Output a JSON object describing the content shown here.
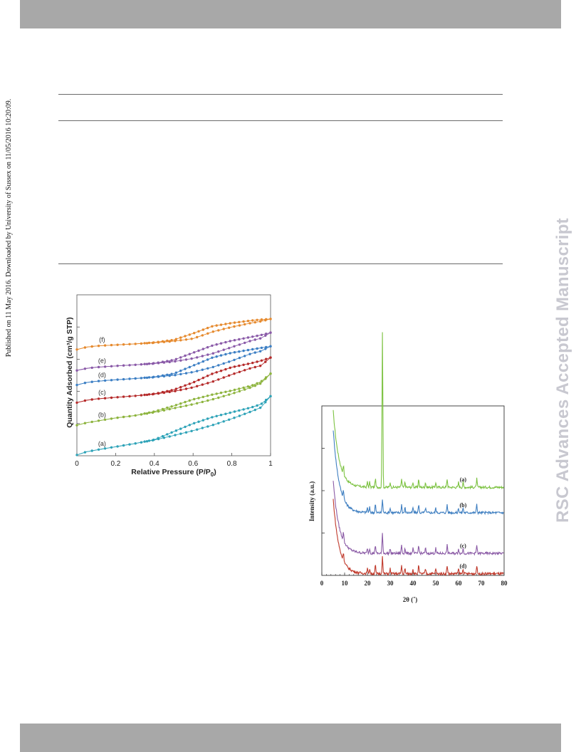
{
  "page": {
    "publication_note": "Published on 11 May 2016. Downloaded by University of Sussex on 11/05/2016 10:20:09.",
    "watermark": "RSC Advances Accepted Manuscript"
  },
  "colors": {
    "header_bar": "#a8a8a8",
    "a": "#2ea3b8",
    "b": "#8db43e",
    "c": "#b52a2a",
    "d": "#3c7fc4",
    "e": "#8a5aa8",
    "f": "#e68a2e",
    "xrd_a": "#7cc241",
    "xrd_b": "#3f7fc1",
    "xrd_c": "#8b5ba6",
    "xrd_d": "#c0392b"
  },
  "chart_data": [
    {
      "type": "line",
      "xlabel": "Relative Pressure (P/P0)",
      "ylabel": "Quantity Adsorbed (cm³/g STP)",
      "xlim": [
        0,
        1
      ],
      "ylim": [
        0,
        100
      ],
      "x_ticks": [
        "0",
        "0.2",
        "0.4",
        "0.6",
        "0.8",
        "1"
      ],
      "grid": false,
      "x": [
        0.0,
        0.05,
        0.1,
        0.2,
        0.3,
        0.4,
        0.5,
        0.6,
        0.7,
        0.8,
        0.9,
        0.95,
        1.0
      ],
      "series": [
        {
          "name": "(a)",
          "color_key": "a",
          "adsorption": [
            0.5,
            2.5,
            3.6,
            5.6,
            7.6,
            9.8,
            12.6,
            15.6,
            19.0,
            23.0,
            27.5,
            30.0,
            37.0
          ],
          "desorption": [
            0.5,
            2.5,
            3.6,
            5.6,
            7.6,
            10.0,
            15.0,
            20.0,
            24.0,
            27.0,
            30.0,
            32.0,
            37.0
          ]
        },
        {
          "name": "(b)",
          "color_key": "b",
          "adsorption": [
            19.0,
            20.5,
            21.5,
            23.5,
            25.0,
            27.0,
            29.5,
            32.0,
            35.0,
            38.5,
            42.5,
            45.0,
            51.0
          ],
          "desorption": [
            19.0,
            20.5,
            21.5,
            23.5,
            25.0,
            27.5,
            31.0,
            35.0,
            38.0,
            40.5,
            43.5,
            46.0,
            51.0
          ]
        },
        {
          "name": "(c)",
          "color_key": "c",
          "adsorption": [
            33.0,
            34.5,
            35.3,
            36.3,
            37.2,
            38.3,
            40.0,
            42.5,
            46.0,
            50.5,
            54.5,
            56.0,
            61.0
          ],
          "desorption": [
            33.0,
            34.5,
            35.3,
            36.3,
            37.2,
            38.5,
            41.0,
            45.5,
            51.0,
            55.0,
            57.5,
            59.0,
            61.0
          ]
        },
        {
          "name": "(d)",
          "color_key": "d",
          "adsorption": [
            44.0,
            45.5,
            46.3,
            47.2,
            48.0,
            48.8,
            50.0,
            52.0,
            55.0,
            59.0,
            63.5,
            65.0,
            68.0
          ],
          "desorption": [
            44.0,
            45.5,
            46.3,
            47.2,
            48.0,
            49.0,
            51.0,
            56.0,
            61.0,
            64.0,
            66.0,
            67.0,
            68.0
          ]
        },
        {
          "name": "(e)",
          "color_key": "e",
          "adsorption": [
            53.0,
            54.3,
            55.0,
            55.8,
            56.5,
            57.3,
            58.5,
            60.5,
            63.5,
            67.5,
            71.5,
            73.0,
            76.5
          ],
          "desorption": [
            53.0,
            54.3,
            55.0,
            55.8,
            56.5,
            57.5,
            59.5,
            64.0,
            68.5,
            71.5,
            73.8,
            75.0,
            76.5
          ]
        },
        {
          "name": "(f)",
          "color_key": "f",
          "adsorption": [
            66.0,
            67.5,
            68.2,
            68.9,
            69.5,
            70.2,
            71.2,
            72.8,
            77.0,
            80.0,
            82.5,
            83.5,
            85.0
          ],
          "desorption": [
            66.0,
            67.5,
            68.2,
            68.9,
            69.5,
            70.4,
            72.0,
            76.0,
            80.5,
            82.5,
            84.0,
            84.6,
            85.0
          ]
        }
      ]
    },
    {
      "type": "line",
      "xlabel": "2θ (˚)",
      "ylabel": "Intensity (a.u.)",
      "xlim": [
        0,
        80
      ],
      "x_ticks": [
        "0",
        "10",
        "20",
        "30",
        "40",
        "50",
        "60",
        "70",
        "80"
      ],
      "ylim": [
        0,
        100
      ],
      "grid": false,
      "x_start": 5,
      "peaks_2theta": [
        9.5,
        20.0,
        21.0,
        23.5,
        26.6,
        30.0,
        35.0,
        36.5,
        40.0,
        42.5,
        45.5,
        50.0,
        55.0,
        60.0,
        62.0,
        68.0
      ],
      "series": [
        {
          "name": "(a)",
          "color_key": "xrd_a",
          "baseline": 52,
          "start": 97,
          "main_peak": 92
        },
        {
          "name": "(b)",
          "color_key": "xrd_b",
          "baseline": 37,
          "start": 86,
          "main_peak": 8
        },
        {
          "name": "(c)",
          "color_key": "xrd_c",
          "baseline": 13,
          "start": 56,
          "main_peak": 12
        },
        {
          "name": "(d)",
          "color_key": "xrd_d",
          "baseline": 1,
          "start": 45,
          "main_peak": 10
        }
      ]
    }
  ]
}
